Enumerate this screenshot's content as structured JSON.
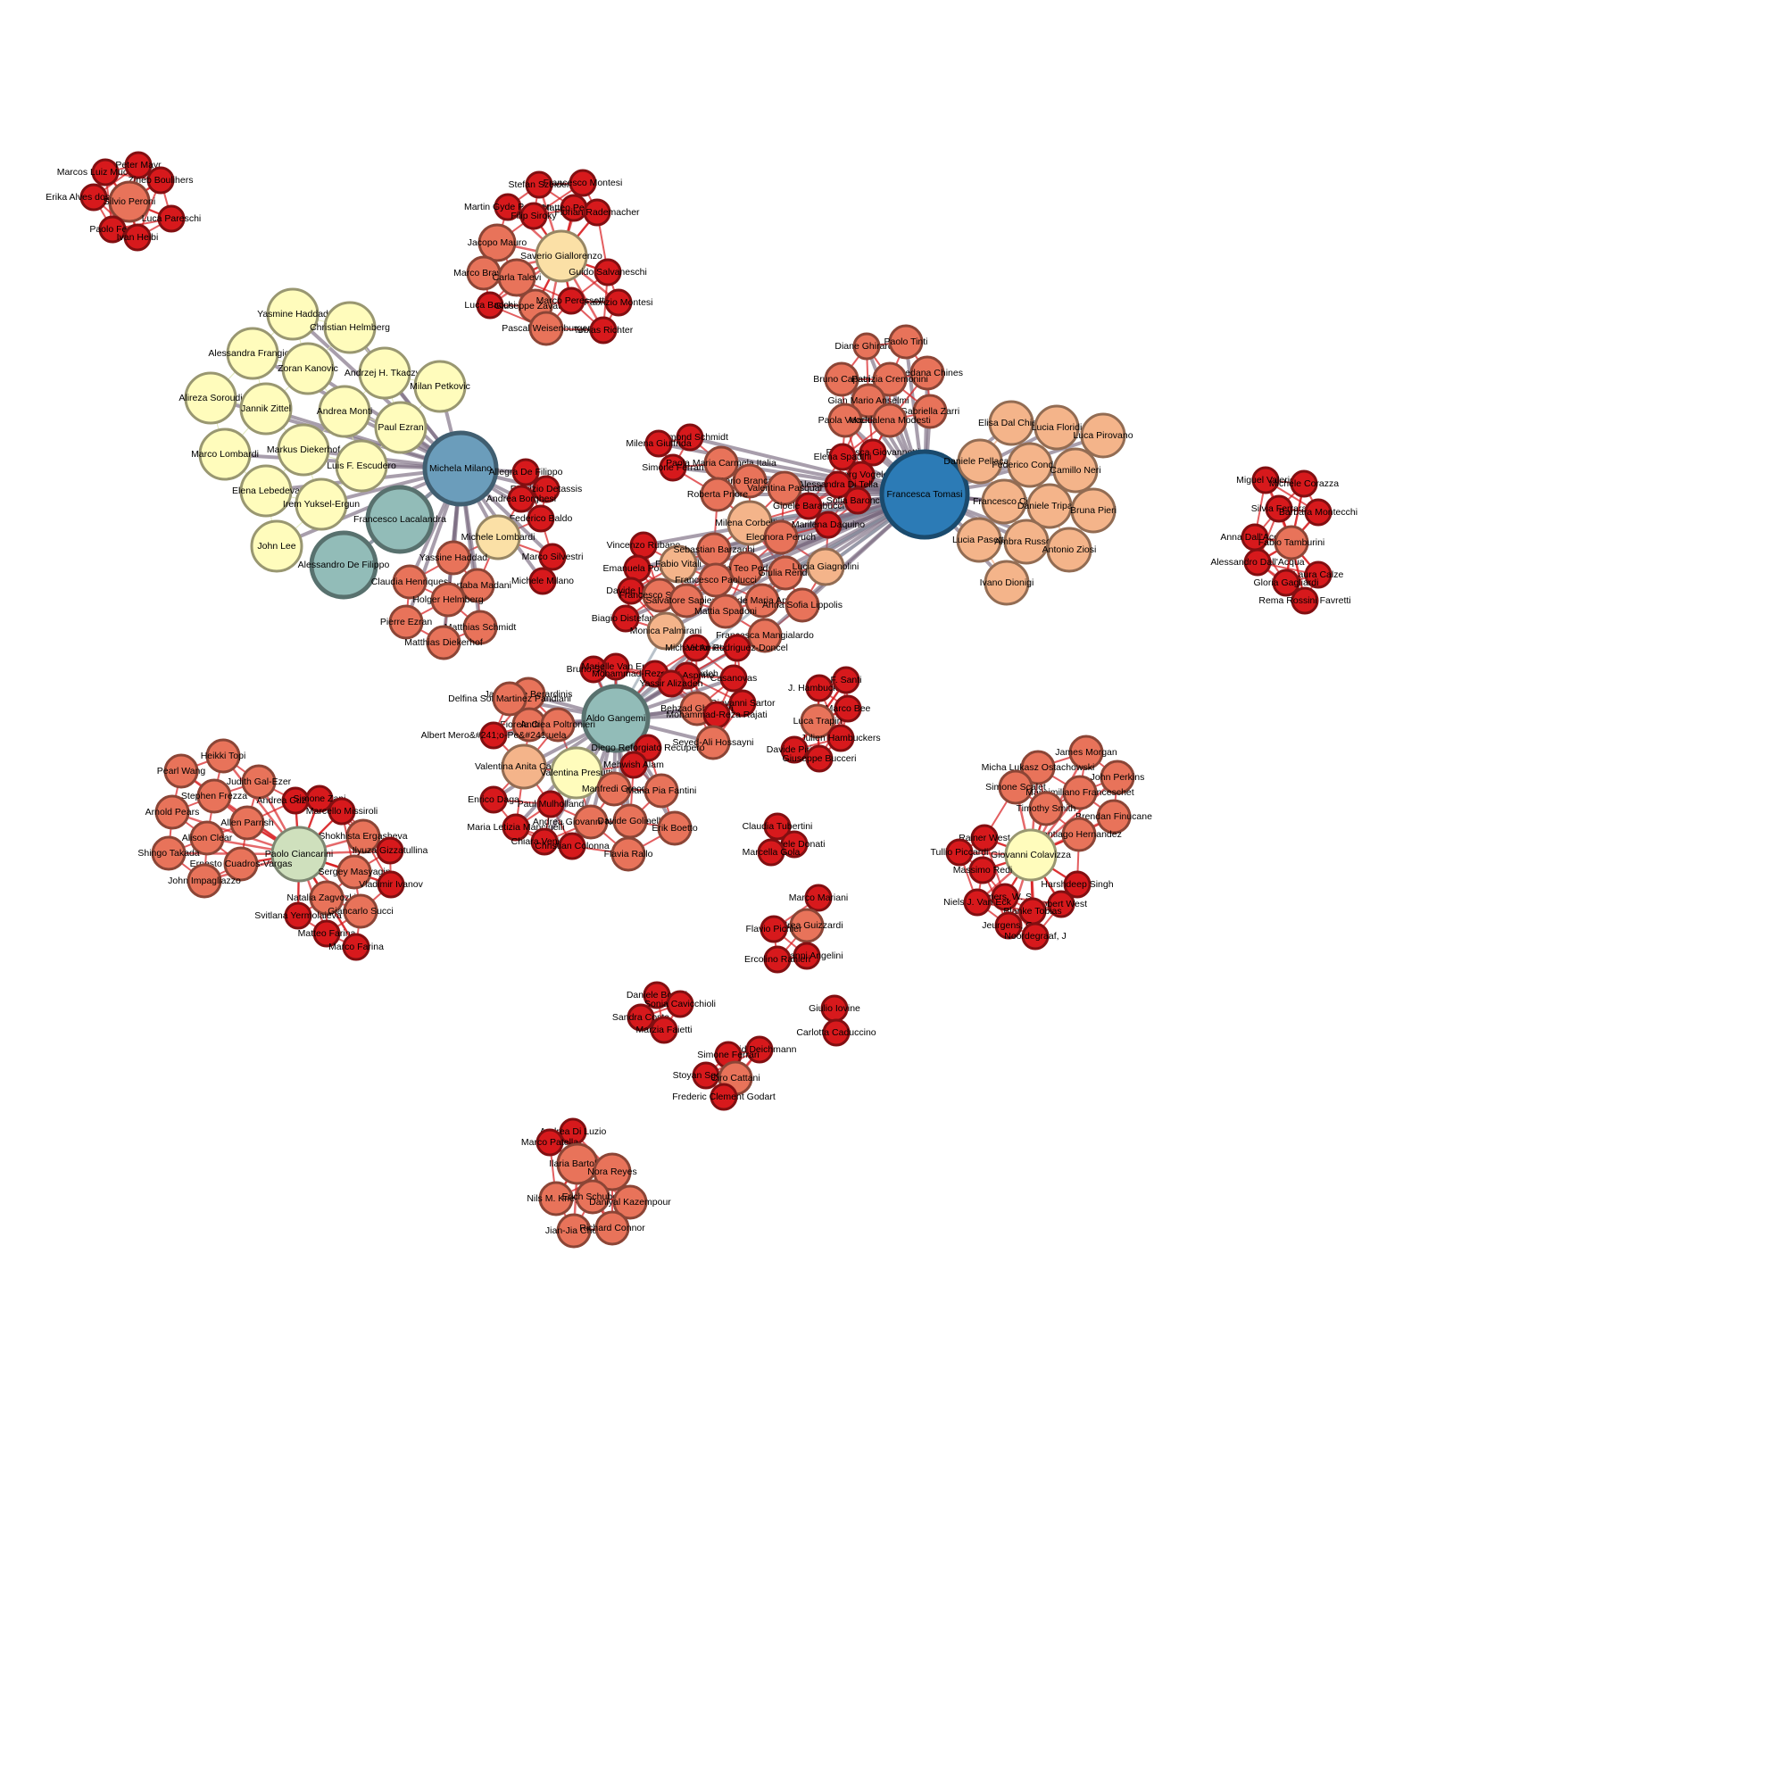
{
  "palette": {
    "red": "#d7191c",
    "salmon": "#e8735a",
    "peach": "#f4b48a",
    "cream": "#fbe0a6",
    "paleyellow": "#fffcbc",
    "sage": "#cfe0bd",
    "teal": "#92bcb8",
    "steel": "#6b9dbb",
    "blue": "#2c7bb6",
    "edge_red": "#d7191c",
    "edge_gray": "#888888"
  },
  "clusters": [
    {
      "id": "c1",
      "hub": "Silvio Peroni",
      "members": [
        "Marcos Luiz Mucheroni",
        "Peter Mayr",
        "Zineb Boulihers",
        "Erika Alves dos Santos",
        "Silvio Peroni",
        "Luca Pareschi",
        "Paolo Ferri",
        "Ivan Heibi"
      ]
    },
    {
      "id": "c2",
      "hub": "Saverio Giallorenzo",
      "members": [
        "Stefan Szeider",
        "Francesco Montesi",
        "Martin Gyde Poulsen",
        "Matteo Pezzetti",
        "Filip Siroky",
        "Florian Rademacher",
        "Jacopo Mauro",
        "Saverio Giallorenzo",
        "Guido Salvaneschi",
        "Marco Bravetti",
        "Carla Talevi",
        "Luca Bacchi",
        "Giuseppe Zavattaro",
        "Marco Peressotti",
        "Fabrizio Montesi",
        "Pascal Weisenburger",
        "Tobias Richter"
      ]
    },
    {
      "id": "c3",
      "hub": "Michela Milano",
      "members": [
        "Yasmine Haddad",
        "Christian Helmberg",
        "Alessandra Frangioni",
        "Zoran Kanovic",
        "Andrzej H. Tkaczyk",
        "Milan Petkovic",
        "Alireza Soroudi",
        "Jannik Zittel",
        "Andrea Monti",
        "Paul Ezran",
        "Marco Lombardi",
        "Markus Diekerhof",
        "Luis F. Escudero",
        "Elena Lebedeva",
        "Irem Yuksel-Ergun",
        "John Lee",
        "Michela Milano",
        "Francesco Lacalandra",
        "Alessandro De Filippo",
        "Allegra De Filippo",
        "Fabrizio Detassis",
        "Andrea Borghesi",
        "Federico Baldo",
        "Michele Lombardi",
        "Marco Silvestri",
        "Michele Milano",
        "Yassine Haddad",
        "Claudia Henriques",
        "Mortaba Madani",
        "Holger Helmberg",
        "Pierre Ezran",
        "Matthias Schmidt",
        "Matthias Diekerhof"
      ]
    },
    {
      "id": "c4",
      "hub": "Francesca Tomasi",
      "members": [
        "Diane Ghirardo",
        "Paolo Tinti",
        "Loredana Chines",
        "Bruno Capaci",
        "Patrizia Cremonini",
        "Gian Mario Anselmi",
        "Gabriella Zarri",
        "Paola Vecchi",
        "Maddalena Modesti",
        "Francesca Giovannetti",
        "Elena Spadini",
        "Georg Vogeler",
        "Alessandra Di Tella",
        "Sofia Baroncini",
        "Francesca Tomasi",
        "Elisa Dal Chiele",
        "Lucia Floridi",
        "Luca Pirovano",
        "Daniele Pellacani",
        "Federico Condello",
        "Camillo Neri",
        "Francesco Citti",
        "Daniele Tripaldi",
        "Bruna Pieri",
        "Lucia Pasetti",
        "Ambra Russotti",
        "Antonio Ziosi",
        "Ivano Dionigi",
        "Desmond Schmidt",
        "Milena Giuffrida",
        "Simone Ferrari",
        "Paola Maria Carmela Italia",
        "Dario Brancato",
        "Valentina Pasqual",
        "Roberta Priore",
        "Gioele Barabucci",
        "Milena Corbellini",
        "Eleonora Peruch",
        "Marilena Daquino",
        "Vincenzo Rubano",
        "Emanuela Poddi",
        "Fabio Vitali",
        "Sebastian Barzaghi",
        "Carlo Teo Pedretti",
        "Giulia Renda",
        "Lucia Giagnolini",
        "Davide Liga",
        "Francesco Sovrano",
        "Francesco Paolucci",
        "Salvatore Sapienza",
        "Davide Maria Apollini",
        "Anna Sofia Lippolis",
        "Mattia Spadoni",
        "Biagio Distefano",
        "Monica Palmirani",
        "Francesca Mangialardo"
      ]
    },
    {
      "id": "c5",
      "hub": "Aldo Gangemi",
      "members": [
        "Michael Arrieta",
        "Victor Rodriguez-Doncel",
        "Bruno Sartini",
        "Marielle Van Erp",
        "Mohammad-Reza Akbarzadeh",
        "Luigi Asprino",
        "Yassir Alizadeh",
        "Casanovas",
        "Aldo Gangemi",
        "Jacopo de Berardinis",
        "Delfina Sol Martinez Pandiani",
        "Giovanni Sartor",
        "Behzad Ghanbari",
        "Mohammad-Reza Rajati",
        "Fiorela Ciroku",
        "Andrea Poltronieri",
        "Albert Mero&#241;o-Pe&#241;uela",
        "Seyed-Ali Hossayni",
        "Diego Reforgiato Recupero",
        "Valentina Anita Carriero",
        "Valentina Presutti",
        "Mehwish Alam",
        "Manfredi Greco",
        "Maria Pia Fantini",
        "Enrico Daga",
        "Paul Mulholland",
        "Andrea Giovanni Nuzzolese",
        "Davide Golinelli",
        "Maria Letizia Mancinelli",
        "Erik Boetto",
        "Chiara Veninata",
        "Christian Colonna",
        "Flavia Rallo"
      ]
    },
    {
      "id": "c6",
      "hub": "Luca Trapin",
      "members": [
        "J. Hambuckers",
        "F. Santi",
        "Marco Bee",
        "Luca Trapin",
        "Julien Hambuckers",
        "Davide Pirino",
        "Giuseppe Bucceri"
      ]
    },
    {
      "id": "c7",
      "hub": "Paolo Ciancarini",
      "members": [
        "Heikki Topi",
        "Pearl Wang",
        "Judith Gal-Ezer",
        "Stephen Frezza",
        "Andrea Cuzzocrea",
        "Simone Zani",
        "Arnold Pears",
        "Marcello Missiroli",
        "Allen Parrish",
        "Alison Clear",
        "Shokhista Ergasheva",
        "Paolo Ciancarini",
        "Ilyuza Gizzatullina",
        "Shingo Takada",
        "Ernesto Cuadros-Vargas",
        "Sergey Masyagin",
        "John Impagliazzo",
        "Vladimir Ivanov",
        "Natalia Zagvozkina",
        "Giancarlo Succi",
        "Svitlana Yermolaieva",
        "Matteo Farina",
        "Marco Farina"
      ]
    },
    {
      "id": "c8",
      "hub": "Giovanni Colavizza",
      "members": [
        "James Morgan",
        "Micha Lukasz Ostachowski",
        "John Perkins",
        "Simone Scalet",
        "Massimiliano Franceschet",
        "Timothy Smith",
        "Brendan Finucane",
        "Santiago Hernandez",
        "Rainer West",
        "Tullio Piccardi",
        "Giovanni Colavizza",
        "Massimo Redi",
        "Harshdeep Singh",
        "Lamers, W. S.",
        "Robert West",
        "Niels J. Van Eck",
        "Blanke Tobias",
        "Jeurgens, C.",
        "Noordegraaf, J"
      ]
    },
    {
      "id": "c9",
      "hub": "Fabio Tamburini",
      "members": [
        "Miguel Valerio",
        "Michele Corazza",
        "Silvia Ferrara",
        "Barbara Montecchi",
        "Anna Dall'Acqua",
        "Fabio Tamburini",
        "Alessandro Dall'Acqua",
        "Laura Calze",
        "Gloria Gagliardi",
        "Rema Rossini Favretti"
      ]
    },
    {
      "id": "c10",
      "hub": "",
      "members": [
        "Claudia Tubertini",
        "Daniele Donati",
        "Marcella Gola"
      ]
    },
    {
      "id": "c11",
      "hub": "",
      "members": [
        "Marco Mariani",
        "Andrea Guizzardi",
        "Flavio Pichler",
        "Giovanni Angelini",
        "Ercolino Ranieri"
      ]
    },
    {
      "id": "c12",
      "hub": "",
      "members": [
        "Daniele Bonati",
        "Sonia Cavicchioli",
        "Sandra Costa",
        "Marzia Faietti"
      ]
    },
    {
      "id": "c13",
      "hub": "",
      "members": [
        "Giulio Iovine",
        "Carlotta Caduccino"
      ]
    },
    {
      "id": "c14",
      "hub": "",
      "members": [
        "David Deichmann",
        "Simone Ferrari",
        "Stoyan Sgourev",
        "Ciro Cattani",
        "Frederic Clement Godart"
      ]
    },
    {
      "id": "c15",
      "hub": "Ilaria Bartolini",
      "members": [
        "Andrea Di Luzio",
        "Marco Patella",
        "Ilaria Bartolini",
        "Nora Reyes",
        "Nils M. Kriege",
        "Erich Schubert",
        "Daniyal Kazempour",
        "Jian-Jia Chen",
        "Richard Connor"
      ]
    }
  ]
}
